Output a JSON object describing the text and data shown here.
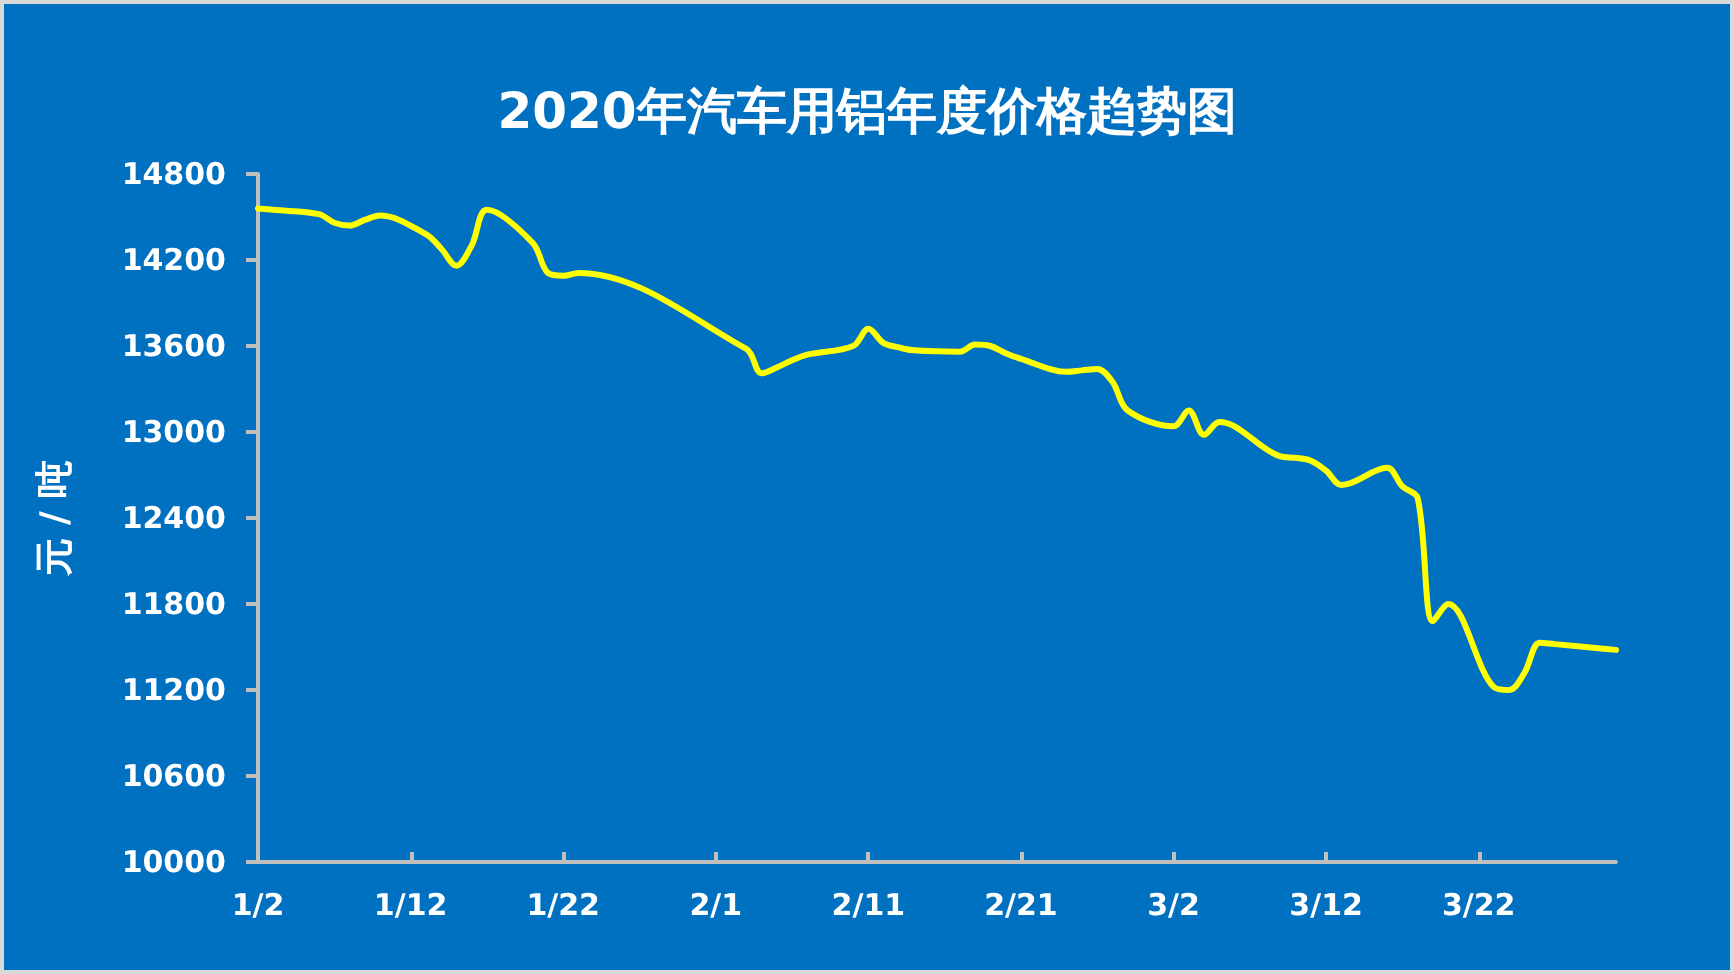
{
  "chart_data": {
    "type": "line",
    "title": "2020年汽车用铝年度价格趋势图",
    "ylabel": "元 / 吨",
    "x": [
      "2020-01-02",
      "2020-01-03",
      "2020-01-06",
      "2020-01-07",
      "2020-01-08",
      "2020-01-09",
      "2020-01-10",
      "2020-01-13",
      "2020-01-14",
      "2020-01-15",
      "2020-01-16",
      "2020-01-17",
      "2020-01-20",
      "2020-01-21",
      "2020-01-22",
      "2020-01-23",
      "2020-02-03",
      "2020-02-04",
      "2020-02-05",
      "2020-02-06",
      "2020-02-07",
      "2020-02-10",
      "2020-02-11",
      "2020-02-12",
      "2020-02-13",
      "2020-02-14",
      "2020-02-17",
      "2020-02-18",
      "2020-02-19",
      "2020-02-20",
      "2020-02-21",
      "2020-02-24",
      "2020-02-25",
      "2020-02-26",
      "2020-02-27",
      "2020-02-28",
      "2020-03-02",
      "2020-03-03",
      "2020-03-04",
      "2020-03-05",
      "2020-03-06",
      "2020-03-09",
      "2020-03-10",
      "2020-03-11",
      "2020-03-12",
      "2020-03-13",
      "2020-03-16",
      "2020-03-17",
      "2020-03-18",
      "2020-03-19",
      "2020-03-20",
      "2020-03-23",
      "2020-03-24",
      "2020-03-25",
      "2020-03-26",
      "2020-03-27",
      "2020-03-30",
      "2020-03-31"
    ],
    "series": [
      {
        "color": "#ffff00",
        "values": [
          14560,
          14550,
          14520,
          14460,
          14440,
          14480,
          14510,
          14380,
          14280,
          14160,
          14300,
          14550,
          14320,
          14110,
          14090,
          14110,
          13580,
          13410,
          13450,
          13500,
          13540,
          13600,
          13720,
          13620,
          13590,
          13570,
          13560,
          13610,
          13600,
          13550,
          13510,
          13420,
          13430,
          13440,
          13350,
          13150,
          13040,
          13150,
          12980,
          13070,
          13040,
          12830,
          12820,
          12800,
          12730,
          12630,
          12750,
          12620,
          12540,
          11680,
          11800,
          11220,
          11200,
          11320,
          11530,
          11520,
          11490,
          11480
        ]
      }
    ],
    "xlim": [
      "2020-01-02",
      "2020-03-31"
    ],
    "xticks": [
      {
        "value": "2020-01-02",
        "label": "1/2"
      },
      {
        "value": "2020-01-12",
        "label": "1/12"
      },
      {
        "value": "2020-01-22",
        "label": "1/22"
      },
      {
        "value": "2020-02-01",
        "label": "2/1"
      },
      {
        "value": "2020-02-11",
        "label": "2/11"
      },
      {
        "value": "2020-02-21",
        "label": "2/21"
      },
      {
        "value": "2020-03-02",
        "label": "3/2"
      },
      {
        "value": "2020-03-12",
        "label": "3/12"
      },
      {
        "value": "2020-03-22",
        "label": "3/22"
      }
    ],
    "ylim": [
      10000,
      14800
    ],
    "yticks": [
      10000,
      10600,
      11200,
      11800,
      12400,
      13000,
      13600,
      14200,
      14800
    ],
    "marker": "none",
    "line_style": "solid"
  }
}
